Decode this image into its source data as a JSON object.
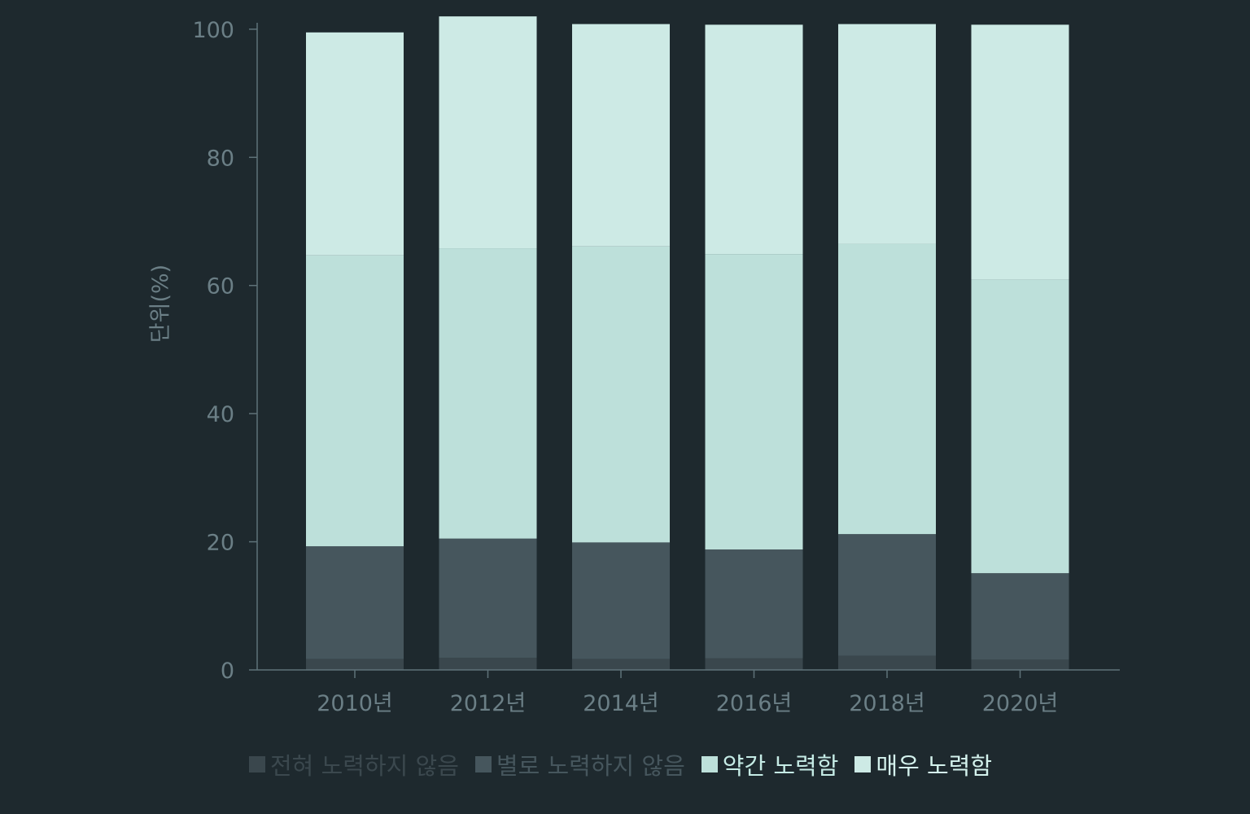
{
  "chart_data": {
    "type": "bar",
    "stacked": true,
    "categories": [
      "2010년",
      "2012년",
      "2014년",
      "2016년",
      "2018년",
      "2020년"
    ],
    "ylabel": "단위(%)",
    "xlabel": "",
    "ylim": [
      0,
      101
    ],
    "yticks": [
      0,
      20,
      40,
      60,
      80,
      100
    ],
    "grid": false,
    "legend_position": "bottom",
    "series": [
      {
        "name": "전혀 노력하지 않음",
        "values": [
          1.7,
          1.9,
          1.7,
          1.8,
          2.2,
          1.6
        ],
        "color": "#3a474d",
        "legend_text_color": "#3b484e"
      },
      {
        "name": "별로 노력하지 않음",
        "values": [
          17.6,
          18.6,
          18.2,
          17.0,
          19.0,
          13.5
        ],
        "color": "#46565d",
        "legend_text_color": "#46565d"
      },
      {
        "name": "약간 노력함",
        "values": [
          45.4,
          45.3,
          46.2,
          46.1,
          45.3,
          45.8
        ],
        "color": "#bde0da",
        "legend_text_color": "#c5ebe5"
      },
      {
        "name": "매우 노력함",
        "values": [
          34.8,
          36.2,
          34.7,
          35.8,
          34.3,
          39.8
        ],
        "color": "#cdeae5",
        "legend_text_color": "#d4f2ed"
      }
    ]
  }
}
